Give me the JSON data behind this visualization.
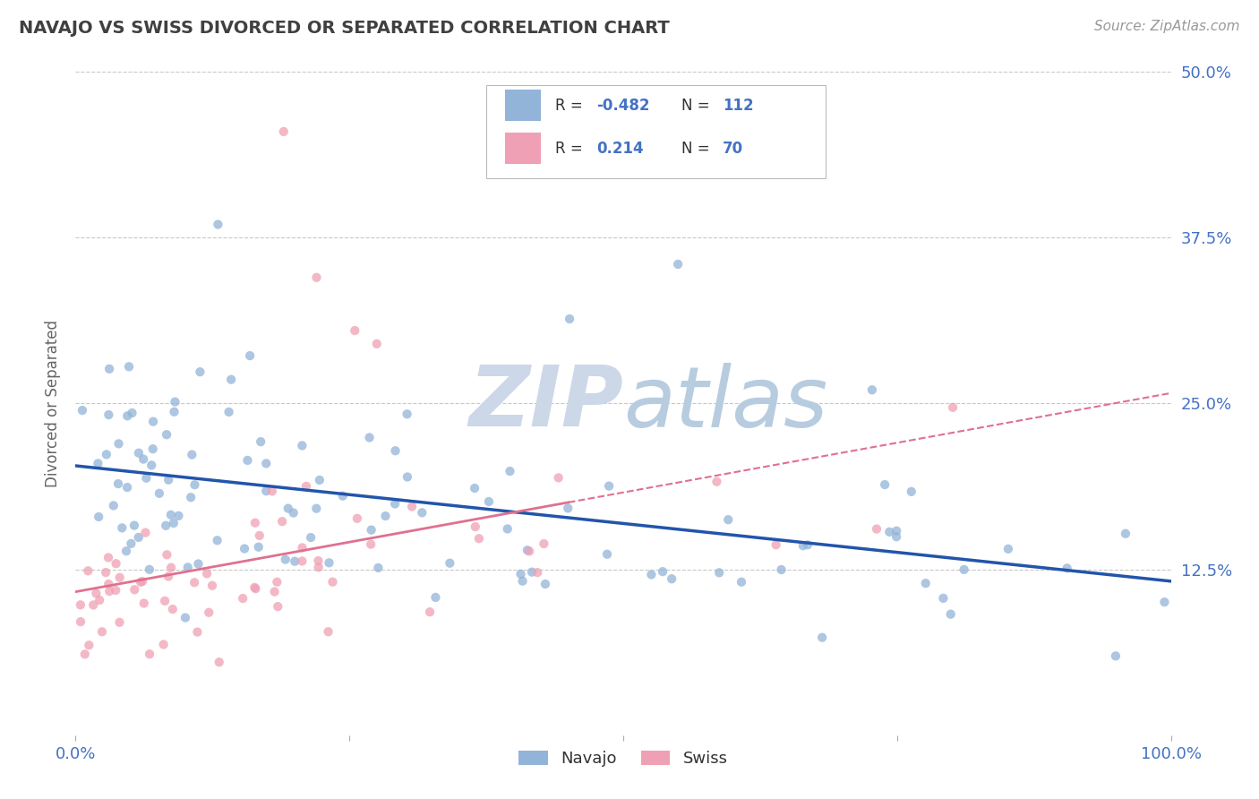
{
  "title": "NAVAJO VS SWISS DIVORCED OR SEPARATED CORRELATION CHART",
  "source": "Source: ZipAtlas.com",
  "ylabel": "Divorced or Separated",
  "navajo_R": -0.482,
  "navajo_N": 112,
  "swiss_R": 0.214,
  "swiss_N": 70,
  "navajo_color": "#92b4d8",
  "swiss_color": "#f0a0b4",
  "navajo_line_color": "#2255aa",
  "swiss_line_color": "#e07090",
  "background_color": "#ffffff",
  "grid_color": "#c8c8c8",
  "title_color": "#404040",
  "axis_label_color": "#666666",
  "tick_label_color": "#4472c4",
  "legend_text_color": "#333333",
  "legend_value_color": "#4472c4",
  "watermark_zip_color": "#c8d4e4",
  "watermark_atlas_color": "#b8cce0",
  "xlim": [
    0.0,
    1.0
  ],
  "ylim": [
    0.0,
    0.5
  ],
  "yticks": [
    0.125,
    0.25,
    0.375,
    0.5
  ],
  "ytick_labels": [
    "12.5%",
    "25.0%",
    "37.5%",
    "50.0%"
  ],
  "figsize": [
    14.06,
    8.92
  ],
  "dpi": 100
}
